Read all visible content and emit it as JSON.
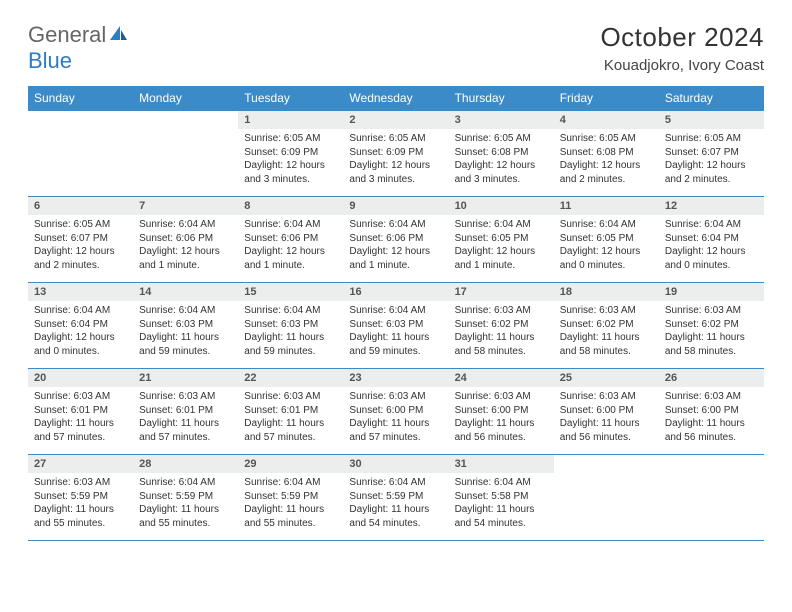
{
  "logo": {
    "text1": "General",
    "text2": "Blue"
  },
  "header": {
    "month": "October 2024",
    "location": "Kouadjokro, Ivory Coast"
  },
  "colors": {
    "header_bg": "#3b8bc9",
    "daynum_bg": "#eceded",
    "rule": "#3b8bc9",
    "text": "#333333"
  },
  "weekdays": [
    "Sunday",
    "Monday",
    "Tuesday",
    "Wednesday",
    "Thursday",
    "Friday",
    "Saturday"
  ],
  "weeks": [
    [
      null,
      null,
      {
        "n": "1",
        "sunrise": "6:05 AM",
        "sunset": "6:09 PM",
        "daylight": "12 hours and 3 minutes."
      },
      {
        "n": "2",
        "sunrise": "6:05 AM",
        "sunset": "6:09 PM",
        "daylight": "12 hours and 3 minutes."
      },
      {
        "n": "3",
        "sunrise": "6:05 AM",
        "sunset": "6:08 PM",
        "daylight": "12 hours and 3 minutes."
      },
      {
        "n": "4",
        "sunrise": "6:05 AM",
        "sunset": "6:08 PM",
        "daylight": "12 hours and 2 minutes."
      },
      {
        "n": "5",
        "sunrise": "6:05 AM",
        "sunset": "6:07 PM",
        "daylight": "12 hours and 2 minutes."
      }
    ],
    [
      {
        "n": "6",
        "sunrise": "6:05 AM",
        "sunset": "6:07 PM",
        "daylight": "12 hours and 2 minutes."
      },
      {
        "n": "7",
        "sunrise": "6:04 AM",
        "sunset": "6:06 PM",
        "daylight": "12 hours and 1 minute."
      },
      {
        "n": "8",
        "sunrise": "6:04 AM",
        "sunset": "6:06 PM",
        "daylight": "12 hours and 1 minute."
      },
      {
        "n": "9",
        "sunrise": "6:04 AM",
        "sunset": "6:06 PM",
        "daylight": "12 hours and 1 minute."
      },
      {
        "n": "10",
        "sunrise": "6:04 AM",
        "sunset": "6:05 PM",
        "daylight": "12 hours and 1 minute."
      },
      {
        "n": "11",
        "sunrise": "6:04 AM",
        "sunset": "6:05 PM",
        "daylight": "12 hours and 0 minutes."
      },
      {
        "n": "12",
        "sunrise": "6:04 AM",
        "sunset": "6:04 PM",
        "daylight": "12 hours and 0 minutes."
      }
    ],
    [
      {
        "n": "13",
        "sunrise": "6:04 AM",
        "sunset": "6:04 PM",
        "daylight": "12 hours and 0 minutes."
      },
      {
        "n": "14",
        "sunrise": "6:04 AM",
        "sunset": "6:03 PM",
        "daylight": "11 hours and 59 minutes."
      },
      {
        "n": "15",
        "sunrise": "6:04 AM",
        "sunset": "6:03 PM",
        "daylight": "11 hours and 59 minutes."
      },
      {
        "n": "16",
        "sunrise": "6:04 AM",
        "sunset": "6:03 PM",
        "daylight": "11 hours and 59 minutes."
      },
      {
        "n": "17",
        "sunrise": "6:03 AM",
        "sunset": "6:02 PM",
        "daylight": "11 hours and 58 minutes."
      },
      {
        "n": "18",
        "sunrise": "6:03 AM",
        "sunset": "6:02 PM",
        "daylight": "11 hours and 58 minutes."
      },
      {
        "n": "19",
        "sunrise": "6:03 AM",
        "sunset": "6:02 PM",
        "daylight": "11 hours and 58 minutes."
      }
    ],
    [
      {
        "n": "20",
        "sunrise": "6:03 AM",
        "sunset": "6:01 PM",
        "daylight": "11 hours and 57 minutes."
      },
      {
        "n": "21",
        "sunrise": "6:03 AM",
        "sunset": "6:01 PM",
        "daylight": "11 hours and 57 minutes."
      },
      {
        "n": "22",
        "sunrise": "6:03 AM",
        "sunset": "6:01 PM",
        "daylight": "11 hours and 57 minutes."
      },
      {
        "n": "23",
        "sunrise": "6:03 AM",
        "sunset": "6:00 PM",
        "daylight": "11 hours and 57 minutes."
      },
      {
        "n": "24",
        "sunrise": "6:03 AM",
        "sunset": "6:00 PM",
        "daylight": "11 hours and 56 minutes."
      },
      {
        "n": "25",
        "sunrise": "6:03 AM",
        "sunset": "6:00 PM",
        "daylight": "11 hours and 56 minutes."
      },
      {
        "n": "26",
        "sunrise": "6:03 AM",
        "sunset": "6:00 PM",
        "daylight": "11 hours and 56 minutes."
      }
    ],
    [
      {
        "n": "27",
        "sunrise": "6:03 AM",
        "sunset": "5:59 PM",
        "daylight": "11 hours and 55 minutes."
      },
      {
        "n": "28",
        "sunrise": "6:04 AM",
        "sunset": "5:59 PM",
        "daylight": "11 hours and 55 minutes."
      },
      {
        "n": "29",
        "sunrise": "6:04 AM",
        "sunset": "5:59 PM",
        "daylight": "11 hours and 55 minutes."
      },
      {
        "n": "30",
        "sunrise": "6:04 AM",
        "sunset": "5:59 PM",
        "daylight": "11 hours and 54 minutes."
      },
      {
        "n": "31",
        "sunrise": "6:04 AM",
        "sunset": "5:58 PM",
        "daylight": "11 hours and 54 minutes."
      },
      null,
      null
    ]
  ]
}
